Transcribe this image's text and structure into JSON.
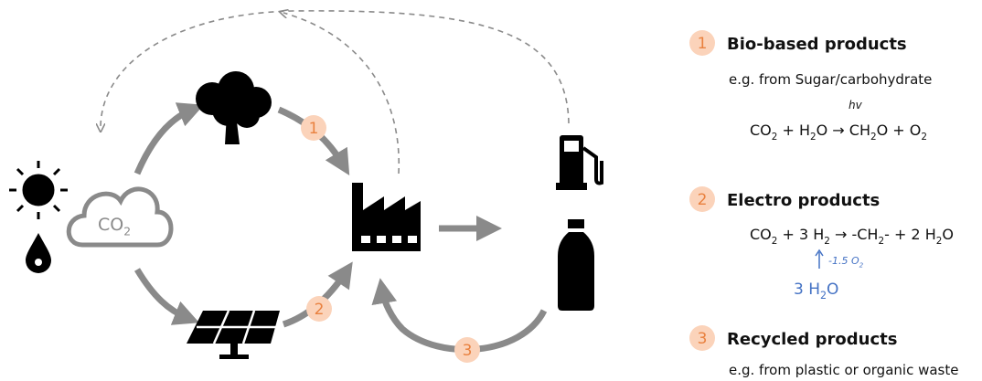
{
  "diagram": {
    "co2": [
      [
        "CO",
        "2"
      ]
    ],
    "badges": [
      "1",
      "2",
      "3"
    ]
  },
  "legend": [
    {
      "number": "1",
      "title": "Bio-based products",
      "note": "e.g. from Sugar/carbohydrate",
      "above": "hv",
      "equation": [
        [
          "CO",
          "2"
        ],
        [
          " + H",
          "2"
        ],
        [
          "O → CH",
          "2"
        ],
        [
          "O + O",
          "2"
        ]
      ]
    },
    {
      "number": "2",
      "title": "Electro products",
      "equation": [
        [
          "CO",
          "2"
        ],
        [
          " + 3 H",
          "2"
        ],
        [
          " → -CH",
          "2"
        ],
        [
          "- + 2 H",
          "2"
        ],
        [
          "O"
        ]
      ],
      "byproduct": [
        [
          "-1.5 O",
          "2"
        ]
      ],
      "input": [
        [
          "3 H",
          "2"
        ],
        [
          "O"
        ]
      ]
    },
    {
      "number": "3",
      "title": "Recycled products",
      "note": "e.g. from plastic or organic waste"
    }
  ]
}
